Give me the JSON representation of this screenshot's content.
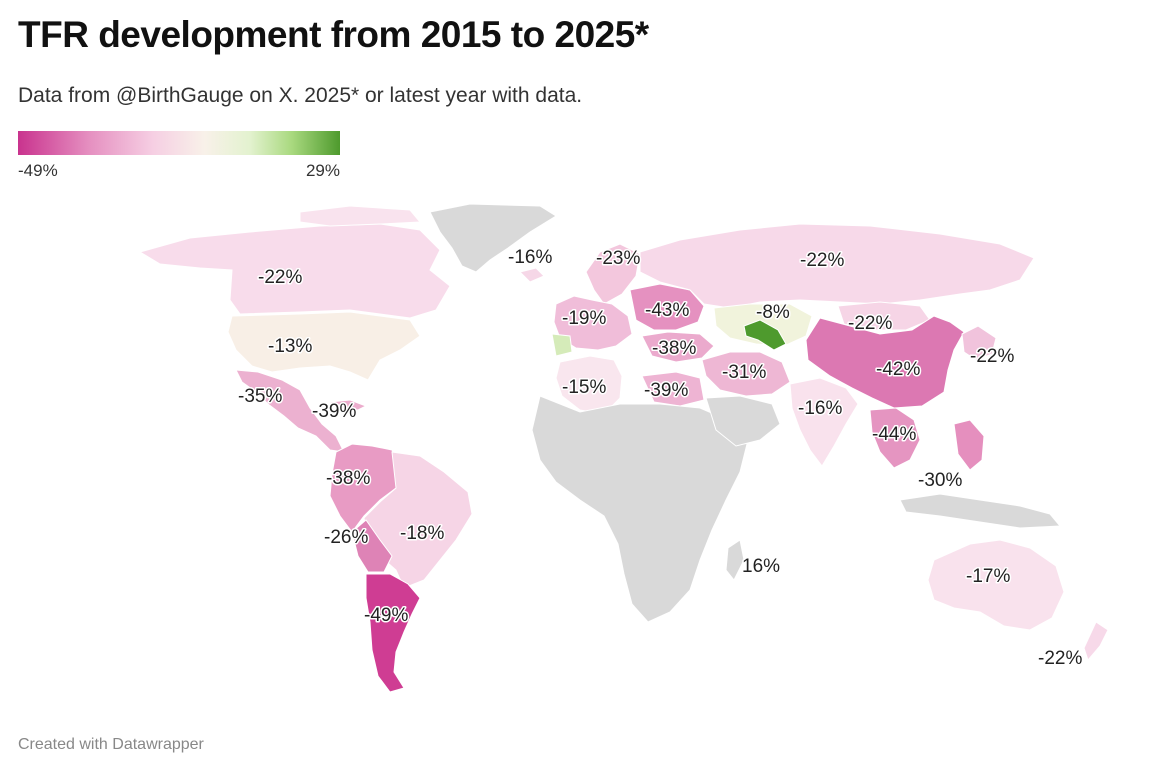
{
  "title": "TFR development from 2015 to 2025*",
  "subtitle": "Data from @BirthGauge on X. 2025* or latest year with data.",
  "legend": {
    "min_label": "-49%",
    "max_label": "29%",
    "min_color": "#c9338e",
    "mid_color": "#f8f1e9",
    "max_color": "#4e9a2d"
  },
  "no_data_color": "#d9d9d9",
  "labels": [
    {
      "id": "canada",
      "text": "-22%"
    },
    {
      "id": "usa",
      "text": "-13%"
    },
    {
      "id": "mexico",
      "text": "-35%"
    },
    {
      "id": "caribbean",
      "text": "-39%"
    },
    {
      "id": "colombia",
      "text": "-38%"
    },
    {
      "id": "chile-north",
      "text": "-26%"
    },
    {
      "id": "brazil",
      "text": "-18%"
    },
    {
      "id": "argentina",
      "text": "-49%"
    },
    {
      "id": "iceland",
      "text": "-16%"
    },
    {
      "id": "nordics",
      "text": "-23%"
    },
    {
      "id": "western-europe",
      "text": "-19%"
    },
    {
      "id": "eastern-europe",
      "text": "-43%"
    },
    {
      "id": "turkey",
      "text": "-38%"
    },
    {
      "id": "north-africa",
      "text": "-15%"
    },
    {
      "id": "egypt",
      "text": "-39%"
    },
    {
      "id": "iran",
      "text": "-31%"
    },
    {
      "id": "russia",
      "text": "-22%"
    },
    {
      "id": "kazakhstan",
      "text": "-8%"
    },
    {
      "id": "mongolia",
      "text": "-22%"
    },
    {
      "id": "china",
      "text": "-42%"
    },
    {
      "id": "japan",
      "text": "-22%"
    },
    {
      "id": "india",
      "text": "-16%"
    },
    {
      "id": "southeast-asia",
      "text": "-44%"
    },
    {
      "id": "philippines",
      "text": "-30%"
    },
    {
      "id": "madagascar",
      "text": "16%"
    },
    {
      "id": "australia",
      "text": "-17%"
    },
    {
      "id": "new-zealand",
      "text": "-22%"
    }
  ],
  "credit": "Created with Datawrapper"
}
